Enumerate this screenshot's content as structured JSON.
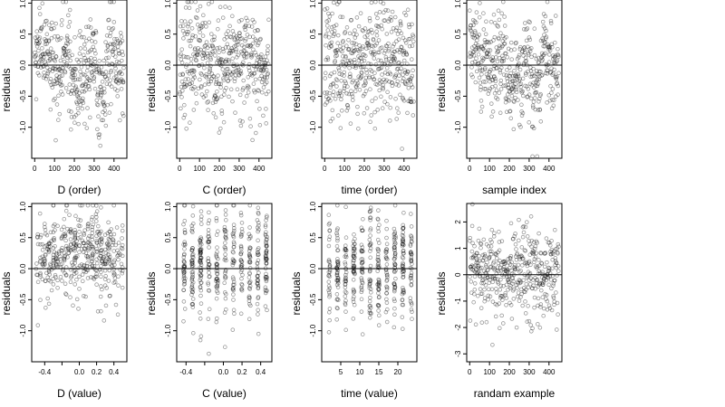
{
  "chart_data": [
    {
      "type": "scatter",
      "id": "p1",
      "xlabel": "D (order)",
      "ylabel": "residuals",
      "xlim": [
        -15,
        465
      ],
      "ylim": [
        -1.5,
        1.05
      ],
      "xticks": [
        0,
        100,
        200,
        300,
        400
      ],
      "xtick_labels": [
        "0",
        "100",
        "200",
        "300",
        "400"
      ],
      "yticks": [
        1.0,
        0.5,
        0.0,
        -0.5,
        -1.0
      ],
      "ytick_labels": [
        "1.0",
        "0.5",
        "0.0",
        "-0.5",
        "-1.0"
      ],
      "hline": 0,
      "n": 450,
      "pattern": "index-clustered",
      "seed": 11
    },
    {
      "type": "scatter",
      "id": "p2",
      "xlabel": "C (order)",
      "ylabel": "residuals",
      "xlim": [
        -15,
        465
      ],
      "ylim": [
        -1.5,
        1.05
      ],
      "xticks": [
        0,
        100,
        200,
        300,
        400
      ],
      "xtick_labels": [
        "0",
        "100",
        "200",
        "300",
        "400"
      ],
      "yticks": [
        1.0,
        0.5,
        0.0,
        -0.5,
        -1.0
      ],
      "ytick_labels": [
        "1.0",
        "0.5",
        "0.0",
        "-0.5",
        "-1.0"
      ],
      "hline": 0,
      "n": 450,
      "pattern": "index-wave",
      "seed": 23
    },
    {
      "type": "scatter",
      "id": "p3",
      "xlabel": "time (order)",
      "ylabel": "residuals",
      "xlim": [
        -15,
        465
      ],
      "ylim": [
        -1.5,
        1.05
      ],
      "xticks": [
        0,
        100,
        200,
        300,
        400
      ],
      "xtick_labels": [
        "0",
        "100",
        "200",
        "300",
        "400"
      ],
      "yticks": [
        1.0,
        0.5,
        0.0,
        -0.5,
        -1.0
      ],
      "ytick_labels": [
        "1.0",
        "0.5",
        "0.0",
        "-0.5",
        "-1.0"
      ],
      "hline": 0,
      "n": 450,
      "pattern": "index-uniform",
      "seed": 37
    },
    {
      "type": "scatter",
      "id": "p4",
      "xlabel": "sample index",
      "ylabel": "residuals",
      "xlim": [
        -15,
        465
      ],
      "ylim": [
        -1.5,
        1.05
      ],
      "xticks": [
        0,
        100,
        200,
        300,
        400
      ],
      "xtick_labels": [
        "0",
        "100",
        "200",
        "300",
        "400"
      ],
      "yticks": [
        1.0,
        0.5,
        0.0,
        -0.5,
        -1.0
      ],
      "ytick_labels": [
        "1.0",
        "0.5",
        "0.0",
        "-0.5",
        "-1.0"
      ],
      "hline": 0,
      "n": 450,
      "pattern": "index-clustered",
      "seed": 41
    },
    {
      "type": "scatter",
      "id": "p5",
      "xlabel": "D (value)",
      "ylabel": "residuals",
      "xlim": [
        -0.55,
        0.55
      ],
      "ylim": [
        -1.5,
        1.05
      ],
      "xticks": [
        -0.4,
        -0.2,
        0.0,
        0.2,
        0.4
      ],
      "xtick_labels": [
        "-0.4",
        "",
        "0.0",
        "0.2",
        "0.4"
      ],
      "yticks": [
        1.0,
        0.5,
        0.0,
        -0.5,
        -1.0
      ],
      "ytick_labels": [
        "1.0",
        "0.5",
        "0.0",
        "-0.5",
        "-1.0"
      ],
      "hline": 0,
      "n": 450,
      "pattern": "value-trend",
      "seed": 53
    },
    {
      "type": "scatter",
      "id": "p6",
      "xlabel": "C (value)",
      "ylabel": "residuals",
      "xlim": [
        -0.5,
        0.52
      ],
      "ylim": [
        -1.5,
        1.05
      ],
      "xticks": [
        -0.4,
        -0.2,
        0.0,
        0.2,
        0.4
      ],
      "xtick_labels": [
        "-0.4",
        "",
        "0.0",
        "0.2",
        "0.4"
      ],
      "yticks": [
        1.0,
        0.5,
        0.0,
        -0.5,
        -1.0
      ],
      "ytick_labels": [
        "1.0",
        "0.5",
        "0.0",
        "-0.5",
        "-1.0"
      ],
      "hline": 0,
      "n": 450,
      "pattern": "value-columns",
      "seed": 67
    },
    {
      "type": "scatter",
      "id": "p7",
      "xlabel": "time (value)",
      "ylabel": "residuals",
      "xlim": [
        0,
        25
      ],
      "ylim": [
        -1.5,
        1.05
      ],
      "xticks": [
        5,
        10,
        15,
        20
      ],
      "xtick_labels": [
        "5",
        "10",
        "15",
        "20"
      ],
      "yticks": [
        1.0,
        0.5,
        0.0,
        -0.5,
        -1.0
      ],
      "ytick_labels": [
        "1.0",
        "0.5",
        "0.0",
        "-0.5",
        "-1.0"
      ],
      "hline": 0,
      "n": 450,
      "pattern": "value-columns",
      "seed": 79
    },
    {
      "type": "scatter",
      "id": "p8",
      "xlabel": "randam example",
      "ylabel": "residuals",
      "xlim": [
        -15,
        465
      ],
      "ylim": [
        -3.3,
        2.7
      ],
      "xticks": [
        0,
        100,
        200,
        300,
        400
      ],
      "xtick_labels": [
        "0",
        "100",
        "200",
        "300",
        "400"
      ],
      "yticks": [
        2,
        1,
        0,
        -1,
        -2,
        -3
      ],
      "ytick_labels": [
        "2",
        "1",
        "0",
        "-1",
        "-2",
        "-3"
      ],
      "hline": 0,
      "n": 450,
      "pattern": "random",
      "seed": 97
    }
  ]
}
